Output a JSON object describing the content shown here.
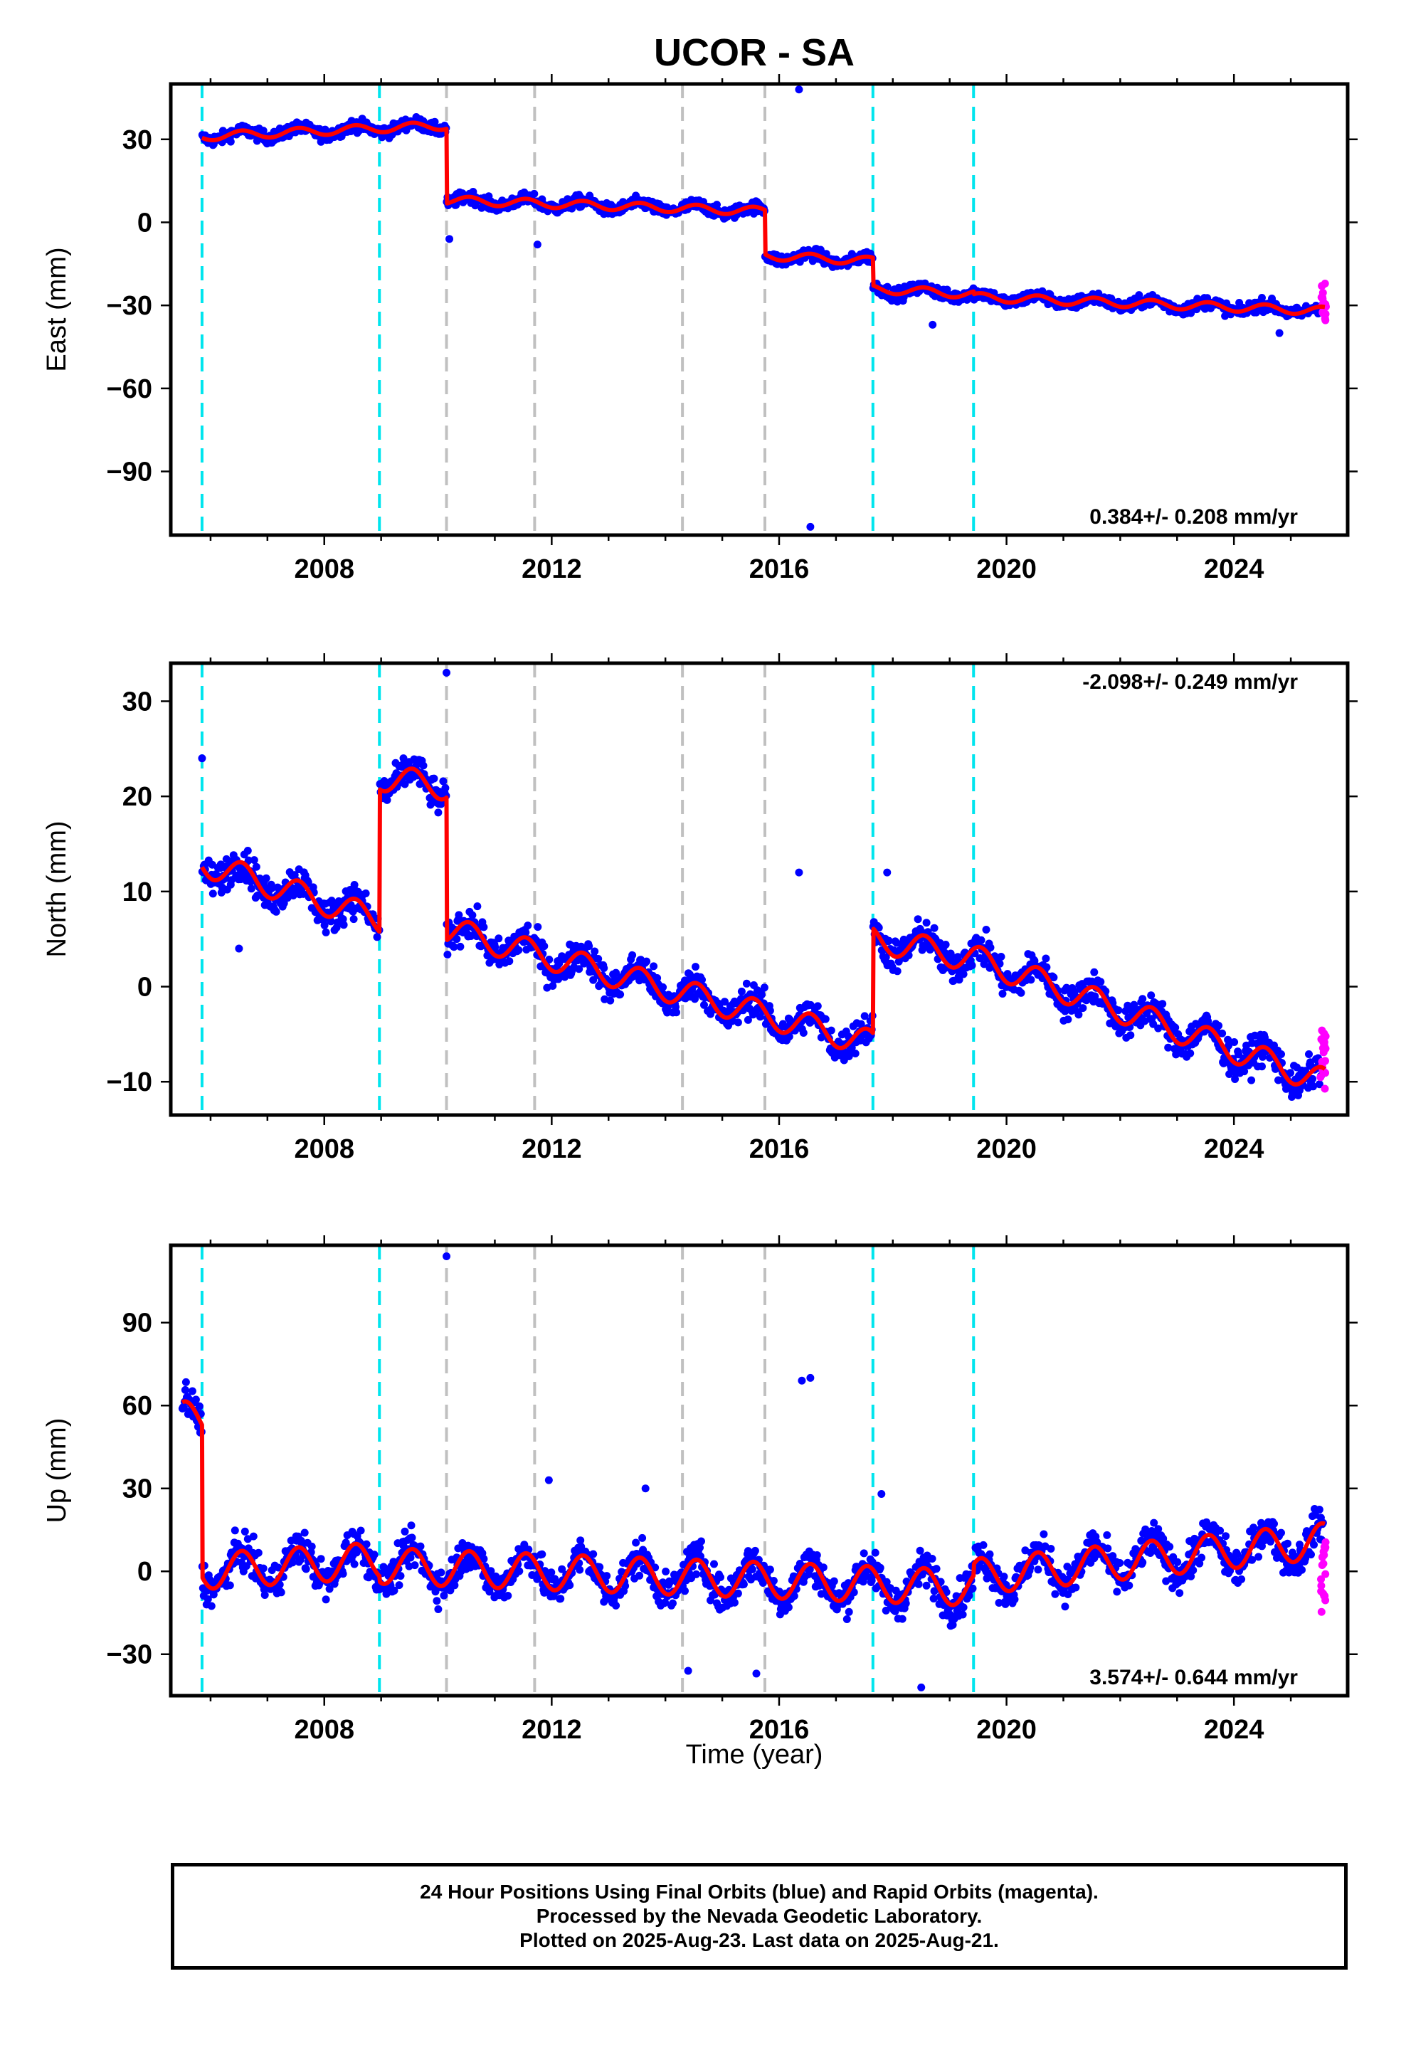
{
  "chart_data": {
    "title": "UCOR - SA",
    "xlabel": "Time (year)",
    "x_range": [
      2005.3,
      2026.0
    ],
    "x_ticks": [
      2008,
      2012,
      2016,
      2020,
      2024
    ],
    "x_tick_labels": [
      "2008",
      "2012",
      "2016",
      "2020",
      "2024"
    ],
    "cyan_breaks": [
      2005.85,
      2008.97,
      2017.65,
      2019.42
    ],
    "gray_breaks": [
      2010.15,
      2011.7,
      2014.3,
      2015.75
    ],
    "colors": {
      "final_orbits": "#0000ff",
      "rapid_orbits": "#ff00ff",
      "model": "#ff0000",
      "equipment_break": "#00e5ee",
      "other_break": "#c0c0c0"
    },
    "panels": [
      {
        "type": "scatter",
        "component": "east",
        "ylabel": "East (mm)",
        "y_range": [
          -113,
          50
        ],
        "y_ticks": [
          30,
          0,
          -30,
          -60,
          -90
        ],
        "y_tick_labels": [
          "30",
          "0",
          "−30",
          "−60",
          "−90"
        ],
        "rate": "0.384+/- 0.208 mm/yr",
        "rate_position": "bottom-right",
        "segments": [
          {
            "x": [
              2005.85,
              2008.97
            ],
            "y": [
              31,
              34
            ]
          },
          {
            "x": [
              2008.97,
              2010.15
            ],
            "y": [
              34,
              35
            ]
          },
          {
            "x": [
              2010.15,
              2015.75
            ],
            "y": [
              8,
              4
            ]
          },
          {
            "x": [
              2015.75,
              2017.65
            ],
            "y": [
              -12,
              -14
            ]
          },
          {
            "x": [
              2017.65,
              2019.42
            ],
            "y": [
              -24,
              -26
            ]
          },
          {
            "x": [
              2019.42,
              2025.6
            ],
            "y": [
              -27,
              -32
            ]
          }
        ],
        "seasonal_amplitude": 1.5,
        "noise": 2.0,
        "outliers": [
          [
            2016.35,
            48
          ],
          [
            2016.55,
            -110
          ],
          [
            2018.7,
            -37
          ],
          [
            2011.75,
            -8
          ],
          [
            2010.2,
            -6
          ],
          [
            2024.8,
            -40
          ]
        ],
        "rapid_range": [
          -36,
          -22
        ]
      },
      {
        "type": "scatter",
        "component": "north",
        "ylabel": "North (mm)",
        "y_range": [
          -13.5,
          34
        ],
        "y_ticks": [
          30,
          20,
          10,
          0,
          -10
        ],
        "y_tick_labels": [
          "30",
          "20",
          "10",
          "0",
          "−10"
        ],
        "rate": "-2.098+/- 0.249 mm/yr",
        "rate_position": "top-right",
        "segments": [
          {
            "x": [
              2005.85,
              2008.97
            ],
            "y": [
              13,
              7
            ]
          },
          {
            "x": [
              2008.97,
              2010.15
            ],
            "y": [
              22,
              21
            ]
          },
          {
            "x": [
              2010.15,
              2017.65
            ],
            "y": [
              6,
              -6
            ]
          },
          {
            "x": [
              2017.65,
              2019.42
            ],
            "y": [
              5,
              3
            ]
          },
          {
            "x": [
              2019.42,
              2025.6
            ],
            "y": [
              3,
              -10
            ]
          }
        ],
        "seasonal_amplitude": 1.4,
        "noise": 1.6,
        "outliers": [
          [
            2010.15,
            33
          ],
          [
            2016.35,
            12
          ],
          [
            2017.9,
            12
          ],
          [
            2005.85,
            24
          ],
          [
            2006.5,
            4
          ]
        ],
        "rapid_range": [
          -11,
          -4
        ]
      },
      {
        "type": "scatter",
        "component": "up",
        "ylabel": "Up (mm)",
        "y_range": [
          -45,
          118
        ],
        "y_ticks": [
          90,
          60,
          30,
          0,
          -30
        ],
        "y_tick_labels": [
          "90",
          "60",
          "30",
          "0",
          "−30"
        ],
        "rate": "3.574+/- 0.644 mm/yr",
        "rate_position": "bottom-right",
        "segments": [
          {
            "x": [
              2005.5,
              2005.85
            ],
            "y": [
              55,
              55
            ]
          },
          {
            "x": [
              2005.85,
              2008.97
            ],
            "y": [
              0,
              4
            ]
          },
          {
            "x": [
              2008.97,
              2019.42
            ],
            "y": [
              2,
              -6
            ]
          },
          {
            "x": [
              2019.42,
              2025.6
            ],
            "y": [
              -2,
              11
            ]
          }
        ],
        "seasonal_amplitude": 6.5,
        "noise": 6.0,
        "outliers": [
          [
            2010.15,
            114
          ],
          [
            2016.4,
            69
          ],
          [
            2016.55,
            70
          ],
          [
            2017.8,
            28
          ],
          [
            2014.4,
            -36
          ],
          [
            2015.6,
            -37
          ],
          [
            2018.5,
            -42
          ],
          [
            2011.95,
            33
          ],
          [
            2013.65,
            30
          ]
        ],
        "rapid_range": [
          -15,
          12
        ]
      }
    ],
    "legend_lines": [
      "24 Hour Positions Using Final Orbits (blue) and Rapid Orbits (magenta).",
      "Processed by the Nevada Geodetic Laboratory.",
      "Plotted on 2025-Aug-23. Last data on 2025-Aug-21."
    ]
  }
}
